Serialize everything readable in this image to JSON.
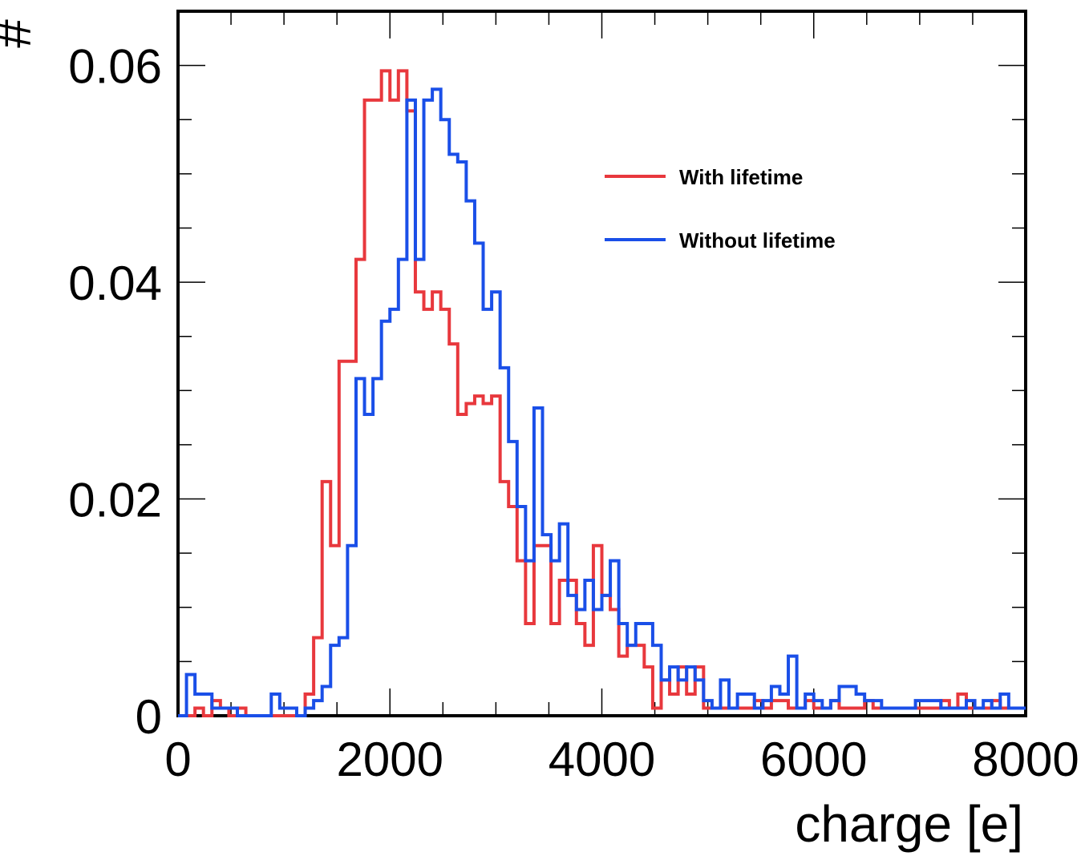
{
  "chart_data": {
    "type": "histogram",
    "xlabel": "charge [e]",
    "ylabel": "#",
    "xlim": [
      0,
      8000
    ],
    "ylim": [
      0,
      0.065
    ],
    "x_ticks": [
      "0",
      "2000",
      "4000",
      "6000",
      "8000"
    ],
    "y_ticks": [
      "0",
      "0.02",
      "0.04",
      "0.06"
    ],
    "bin_width": 80,
    "legend": {
      "position": "top-right",
      "entries": [
        "With lifetime",
        "Without lifetime"
      ]
    },
    "series": [
      {
        "name": "With lifetime",
        "color": "#e8383d",
        "values": [
          0,
          0,
          0.0007,
          0,
          0.0014,
          0.0007,
          0,
          0.0007,
          0,
          0,
          0,
          0,
          0,
          0,
          0,
          0.002,
          0.0072,
          0.0216,
          0.0157,
          0.0327,
          0.0327,
          0.0421,
          0.0568,
          0.0568,
          0.0595,
          0.0568,
          0.0595,
          0.0558,
          0.0391,
          0.0375,
          0.0391,
          0.0375,
          0.0343,
          0.0278,
          0.0288,
          0.0295,
          0.0288,
          0.0295,
          0.0216,
          0.0193,
          0.0143,
          0.0085,
          0.0157,
          0.0157,
          0.0085,
          0.0125,
          0.0125,
          0.0085,
          0.0065,
          0.0157,
          0.0111,
          0.0098,
          0.0055,
          0.0065,
          0.0065,
          0.0045,
          0.0033,
          0.0033,
          0.0045,
          0.0033,
          0.0033,
          0.0014,
          0.0005,
          0.0033,
          0.002,
          0.0045,
          0.002,
          0.0045,
          0.002,
          0.0045,
          0.0033,
          0.002,
          0.0007,
          0.0007,
          0.0007,
          0.0007,
          0.0007,
          0.0007,
          0.0007,
          0.0007,
          0.0007,
          0.002,
          0.0007,
          0.0014,
          0.0007,
          0.0014,
          0.0007,
          0.0007,
          0.0014,
          0.0007,
          0.0007,
          0.0007,
          0.0014,
          0.002,
          0.0007,
          0.0014,
          0.0007,
          0.002,
          0.0014,
          0.0007,
          0.0007,
          0.0007,
          0.0007,
          0.0007,
          0.0007,
          0.0007,
          0.0007,
          0.0007,
          0.0007,
          0.0007,
          0.0007,
          0.0014,
          0.0007,
          0.0014,
          0.0007,
          0.0007,
          0.0007,
          0.0007,
          0.0007,
          0.0007,
          0.0007,
          0.0007,
          0.0007,
          0.0007,
          0.0007,
          0.0007,
          0.0007,
          0.0007,
          0.0007,
          0.0007,
          0.0007,
          0.0007,
          0.0007,
          0.0007,
          0.0007,
          0.0007,
          0.0007,
          0.0007,
          0.0007,
          0.0007,
          0.002,
          0.0007,
          0.0014,
          0.0007,
          0.0007,
          0.0014,
          0.0007,
          0.0007,
          0.0007,
          0.0007,
          0.0007,
          0.0007,
          0.0007,
          0.0007,
          0.0007,
          0.0007,
          0.0007,
          0.0007
        ]
      },
      {
        "name": "Without lifetime",
        "color": "#1a4fe8",
        "values": [
          0,
          0.0038,
          0.002,
          0.002,
          0.0007,
          0.0007,
          0.0007,
          0,
          0,
          0,
          0,
          0.002,
          0.0007,
          0.0007,
          0,
          0.0007,
          0.0014,
          0.0027,
          0.0065,
          0.0072,
          0.0157,
          0.0311,
          0.0278,
          0.0311,
          0.0364,
          0.0375,
          0.0421,
          0.0568,
          0.0421,
          0.0568,
          0.0578,
          0.055,
          0.0518,
          0.0511,
          0.0475,
          0.0436,
          0.0375,
          0.0391,
          0.0321,
          0.0253,
          0.0193,
          0.0143,
          0.0284,
          0.0167,
          0.0143,
          0.0177,
          0.0111,
          0.0098,
          0.0125,
          0.0098,
          0.0111,
          0.0143,
          0.0085,
          0.0065,
          0.0085,
          0.0085,
          0.0045,
          0.0045,
          0.0065,
          0.0065,
          0.0045,
          0.0065,
          0.0033,
          0.0045,
          0.0045,
          0.0007,
          0.002,
          0.0007,
          0.0033,
          0.0014,
          0.0033,
          0.0014,
          0.0014,
          0.0014,
          0.0014,
          0.0014,
          0.0014,
          0.0014,
          0.0014,
          0.0014,
          0.0014,
          0.0014,
          0.0014,
          0.0014,
          0.0014,
          0.0014,
          0.0014,
          0.0014,
          0.0014,
          0.0014,
          0.0014,
          0.0014,
          0.0014,
          0.0014,
          0.0014,
          0.0014,
          0.0014,
          0.0014,
          0.0014,
          0.0014,
          0.0014,
          0.0014,
          0.0014,
          0.0014,
          0.0014,
          0.0014,
          0.0014,
          0.0014,
          0.0014,
          0.0014,
          0.0014,
          0.0014,
          0.0014,
          0.0014,
          0.0014,
          0.0014,
          0.0014,
          0.0014,
          0.0014,
          0.0014,
          0.0014,
          0.0014,
          0.0014,
          0.0014,
          0.0014,
          0.0014,
          0.0014,
          0.0014,
          0.0014,
          0.0014,
          0.0014,
          0.0014,
          0.0014,
          0.0014,
          0.0014,
          0.0014,
          0.0014,
          0.0014,
          0.0014,
          0.0014,
          0.0014,
          0.0014,
          0.0014,
          0.0014,
          0.0014,
          0.0014,
          0.0014,
          0.0014,
          0.0014,
          0.0014,
          0.0014,
          0.0014,
          0.0014,
          0.0014,
          0.0014,
          0.0014,
          0.0014,
          0.0014,
          0.0014,
          0.0014,
          0.0014,
          0.0014,
          0.0014
        ]
      }
    ],
    "overrides": {
      "With lifetime": [
        [
          4500,
          0.0007
        ],
        [
          4580,
          0.0033
        ],
        [
          4660,
          0.002
        ],
        [
          4740,
          0.0045
        ],
        [
          4820,
          0.002
        ],
        [
          4900,
          0.0045
        ],
        [
          4980,
          0.0007
        ],
        [
          5060,
          0.0007
        ],
        [
          5140,
          0.0007
        ],
        [
          5220,
          0.0007
        ],
        [
          5300,
          0.0007
        ],
        [
          5380,
          0.0007
        ],
        [
          5460,
          0.0014
        ],
        [
          5540,
          0.0007
        ],
        [
          5620,
          0.0014
        ],
        [
          5700,
          0.0014
        ],
        [
          5780,
          0.0007
        ],
        [
          5860,
          0.0007
        ],
        [
          5940,
          0.0014
        ],
        [
          6020,
          0.0007
        ],
        [
          6100,
          0.0007
        ],
        [
          6180,
          0.0014
        ],
        [
          6260,
          0.0007
        ],
        [
          6340,
          0.0007
        ],
        [
          6420,
          0.0007
        ],
        [
          6500,
          0.0014
        ],
        [
          6580,
          0.0007
        ],
        [
          6660,
          0.0007
        ],
        [
          6740,
          0.0007
        ],
        [
          6820,
          0.0007
        ],
        [
          6900,
          0.0007
        ],
        [
          6980,
          0.0007
        ],
        [
          7060,
          0.0007
        ],
        [
          7140,
          0.0007
        ],
        [
          7220,
          0.0014
        ],
        [
          7300,
          0.0007
        ],
        [
          7380,
          0.002
        ],
        [
          7460,
          0.0007
        ],
        [
          7540,
          0.0007
        ],
        [
          7620,
          0.0007
        ],
        [
          7700,
          0.0014
        ],
        [
          7780,
          0.0007
        ],
        [
          7860,
          0.0007
        ],
        [
          7940,
          0.0007
        ]
      ],
      "Without lifetime": [
        [
          4500,
          0.0065
        ],
        [
          4580,
          0.0033
        ],
        [
          4660,
          0.0045
        ],
        [
          4740,
          0.0033
        ],
        [
          4820,
          0.0045
        ],
        [
          4900,
          0.0033
        ],
        [
          4980,
          0.0014
        ],
        [
          5060,
          0.0007
        ],
        [
          5140,
          0.0033
        ],
        [
          5220,
          0.0007
        ],
        [
          5300,
          0.002
        ],
        [
          5380,
          0.002
        ],
        [
          5460,
          0.0007
        ],
        [
          5540,
          0.0014
        ],
        [
          5620,
          0.0027
        ],
        [
          5700,
          0.002
        ],
        [
          5780,
          0.0055
        ],
        [
          5860,
          0.0007
        ],
        [
          5940,
          0.002
        ],
        [
          6020,
          0.0014
        ],
        [
          6100,
          0.0007
        ],
        [
          6180,
          0.0014
        ],
        [
          6260,
          0.0027
        ],
        [
          6340,
          0.0027
        ],
        [
          6420,
          0.002
        ],
        [
          6500,
          0.0014
        ],
        [
          6580,
          0.0014
        ],
        [
          6660,
          0.0007
        ],
        [
          6740,
          0.0007
        ],
        [
          6820,
          0.0007
        ],
        [
          6900,
          0.0007
        ],
        [
          6980,
          0.0014
        ],
        [
          7060,
          0.0014
        ],
        [
          7140,
          0.0014
        ],
        [
          7220,
          0.0007
        ],
        [
          7300,
          0.0007
        ],
        [
          7380,
          0.0007
        ],
        [
          7460,
          0.0014
        ],
        [
          7540,
          0.0007
        ],
        [
          7620,
          0.0014
        ],
        [
          7700,
          0.0007
        ],
        [
          7780,
          0.002
        ],
        [
          7860,
          0.0007
        ],
        [
          7940,
          0.0007
        ]
      ]
    }
  }
}
